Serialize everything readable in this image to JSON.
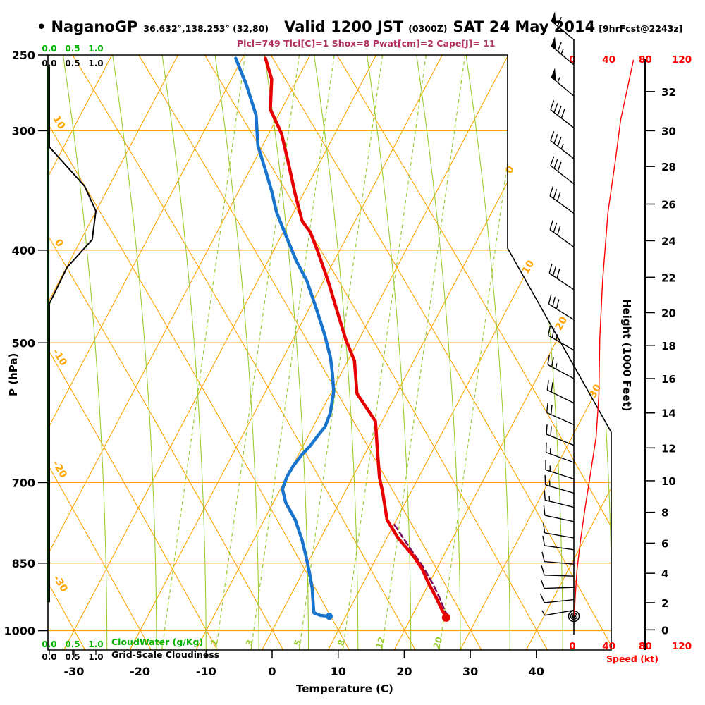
{
  "header": {
    "bullet": "•",
    "station": "NaganoGP",
    "coords": "36.632°,138.253° (32,80)",
    "valid": "Valid 1200 JST",
    "zulu": "(0300Z)",
    "date": "SAT 24 May 2014",
    "forecast": "[9hrFcst@2243z]",
    "stats": "Plcl=749 Tlcl[C]=1 Shox=8 Pwat[cm]=2 Cape[J]= 11"
  },
  "scales": {
    "cloudwater": {
      "ticks": [
        "0.0",
        "0.5",
        "1.0"
      ],
      "label": "CloudWater (g/Kg)"
    },
    "cloudiness": {
      "ticks": [
        "0.0",
        "0.5",
        "1.0"
      ],
      "label": "Grid-Scale Cloudiness"
    }
  },
  "axes": {
    "pressure": {
      "label": "P (hPa)",
      "ticks": [
        250,
        300,
        400,
        500,
        700,
        850,
        1000
      ]
    },
    "temperature": {
      "label": "Temperature (C)",
      "ticks": [
        -30,
        -20,
        -10,
        0,
        10,
        20,
        30,
        40
      ]
    },
    "height": {
      "label": "Height (1000 Feet)",
      "ticks": [
        [
          32,
          273
        ],
        [
          30,
          300
        ],
        [
          28,
          327
        ],
        [
          26,
          358
        ],
        [
          24,
          391
        ],
        [
          22,
          427
        ],
        [
          20,
          465
        ],
        [
          18,
          503
        ],
        [
          16,
          545
        ],
        [
          14,
          592
        ],
        [
          12,
          644
        ],
        [
          10,
          697
        ],
        [
          8,
          752
        ],
        [
          6,
          810
        ],
        [
          4,
          871
        ],
        [
          2,
          935
        ],
        [
          0,
          998
        ]
      ]
    },
    "speed": {
      "label": "Speed (kt)",
      "ticks": [
        0,
        40,
        80,
        120
      ]
    }
  },
  "chart_data": {
    "type": "line",
    "subtype": "skew-T log-p thermodynamic sounding",
    "title": "NaganoGP Valid 1200 JST (0300Z) SAT 24 May 2014 [9hrFcst@2243z]",
    "pressure_range_hPa": [
      250,
      1000
    ],
    "temperature_range_C": [
      -30,
      40
    ],
    "grid": {
      "isobars_hPa": [
        300,
        400,
        500,
        700,
        850,
        1000
      ],
      "isotherms_C": [
        -80,
        -70,
        -60,
        -50,
        -40,
        -30,
        -20,
        -10,
        0,
        10,
        20,
        30,
        40
      ],
      "dry_adiabats_C": [
        -40,
        -30,
        -20,
        -10,
        0,
        10,
        20,
        30,
        40,
        50,
        60
      ],
      "moist_adiabats_C": [
        -25,
        -17.5,
        -10,
        -2,
        5.5,
        13,
        21,
        28.5,
        36,
        44,
        51.5
      ],
      "mixing_ratio_values_g_kg": [
        1,
        2,
        3,
        5,
        8,
        12,
        20
      ],
      "mixing_ratio_t_at_1000hPa": [
        -16.3,
        -8.1,
        -2.8,
        4.5,
        11.1,
        17.0,
        25.7
      ],
      "isotherm_edge_labels": [
        "0",
        "10",
        "20",
        "30"
      ],
      "dry_adiabat_edge_labels": [
        "10",
        "0",
        "-10",
        "-20",
        "-30"
      ]
    },
    "series": {
      "temperature_C": [
        [
          252,
          -46.5
        ],
        [
          265,
          -43.9
        ],
        [
          285,
          -41.7
        ],
        [
          302,
          -38.1
        ],
        [
          323,
          -34.9
        ],
        [
          351,
          -31.0
        ],
        [
          373,
          -28.0
        ],
        [
          383,
          -25.9
        ],
        [
          400,
          -23.4
        ],
        [
          431,
          -19.3
        ],
        [
          462,
          -15.7
        ],
        [
          496,
          -12.0
        ],
        [
          522,
          -9.0
        ],
        [
          565,
          -6.0
        ],
        [
          604,
          -1.0
        ],
        [
          646,
          1.5
        ],
        [
          692,
          4.1
        ],
        [
          716,
          5.7
        ],
        [
          766,
          8.6
        ],
        [
          799,
          11.6
        ],
        [
          815,
          13.3
        ],
        [
          836,
          15.5
        ],
        [
          862,
          17.8
        ],
        [
          892,
          19.9
        ],
        [
          922,
          22.1
        ],
        [
          946,
          23.7
        ],
        [
          969,
          25.3
        ]
      ],
      "dewpoint_C": [
        [
          252,
          -51.0
        ],
        [
          269,
          -47.2
        ],
        [
          289,
          -43.4
        ],
        [
          311,
          -40.7
        ],
        [
          330,
          -37.6
        ],
        [
          347,
          -35.0
        ],
        [
          365,
          -32.6
        ],
        [
          383,
          -29.8
        ],
        [
          410,
          -25.8
        ],
        [
          431,
          -22.5
        ],
        [
          464,
          -18.5
        ],
        [
          491,
          -15.5
        ],
        [
          519,
          -12.8
        ],
        [
          540,
          -11.2
        ],
        [
          562,
          -9.7
        ],
        [
          592,
          -8.5
        ],
        [
          612,
          -8.2
        ],
        [
          626,
          -8.6
        ],
        [
          640,
          -8.9
        ],
        [
          655,
          -9.5
        ],
        [
          673,
          -9.9
        ],
        [
          690,
          -10.0
        ],
        [
          711,
          -9.7
        ],
        [
          735,
          -8.1
        ],
        [
          766,
          -5.3
        ],
        [
          802,
          -2.8
        ],
        [
          834,
          -0.9
        ],
        [
          867,
          0.9
        ],
        [
          903,
          2.7
        ],
        [
          938,
          4.1
        ],
        [
          958,
          4.9
        ],
        [
          964,
          6.1
        ],
        [
          966,
          7.5
        ]
      ],
      "parcel_C": [
        [
          775,
          10.1
        ],
        [
          823,
          14.6
        ],
        [
          859,
          17.9
        ],
        [
          892,
          20.5
        ],
        [
          925,
          22.8
        ],
        [
          954,
          24.6
        ],
        [
          963,
          25.3
        ]
      ],
      "wind_speed_kt": [
        [
          253,
          67
        ],
        [
          292,
          53
        ],
        [
          323,
          47
        ],
        [
          365,
          39
        ],
        [
          432,
          33
        ],
        [
          495,
          30
        ],
        [
          567,
          29
        ],
        [
          627,
          26
        ],
        [
          683,
          20
        ],
        [
          743,
          14
        ],
        [
          802,
          9
        ],
        [
          864,
          5
        ],
        [
          924,
          3
        ],
        [
          965,
          2
        ]
      ],
      "wind_barbs": [
        [
          241,
          140,
          1,
          1,
          0
        ],
        [
          256,
          140,
          1,
          1,
          1
        ],
        [
          276,
          140,
          1,
          0,
          1
        ],
        [
          298,
          142,
          0,
          4,
          0
        ],
        [
          321,
          142,
          0,
          3,
          1
        ],
        [
          341,
          142,
          0,
          3,
          0
        ],
        [
          366,
          144,
          0,
          3,
          0
        ],
        [
          397,
          144,
          0,
          3,
          0
        ],
        [
          440,
          146,
          0,
          3,
          0
        ],
        [
          473,
          148,
          0,
          3,
          0
        ],
        [
          509,
          150,
          0,
          2,
          1
        ],
        [
          545,
          152,
          0,
          2,
          1
        ],
        [
          578,
          154,
          0,
          2,
          0
        ],
        [
          609,
          156,
          0,
          2,
          0
        ],
        [
          640,
          158,
          0,
          2,
          0
        ],
        [
          667,
          160,
          0,
          1,
          1
        ],
        [
          694,
          162,
          0,
          1,
          1
        ],
        [
          718,
          164,
          0,
          1,
          1
        ],
        [
          743,
          166,
          0,
          1,
          1
        ],
        [
          769,
          168,
          0,
          1,
          0
        ],
        [
          800,
          170,
          0,
          1,
          0
        ],
        [
          823,
          172,
          0,
          1,
          0
        ],
        [
          852,
          175,
          0,
          1,
          0
        ],
        [
          877,
          178,
          0,
          1,
          0
        ],
        [
          901,
          182,
          0,
          1,
          0
        ],
        [
          928,
          186,
          0,
          1,
          0
        ],
        [
          952,
          190,
          0,
          0,
          1
        ]
      ],
      "cloudiness_fraction": [
        [
          257,
          0
        ],
        [
          312,
          0
        ],
        [
          343,
          0.76
        ],
        [
          364,
          1.0
        ],
        [
          390,
          0.92
        ],
        [
          417,
          0.38
        ],
        [
          455,
          0
        ],
        [
          934,
          0
        ]
      ],
      "cloudwater_g_kg": [
        [
          257,
          0
        ],
        [
          934,
          0
        ]
      ]
    },
    "colors": {
      "temperature": "#e60000",
      "dewpoint": "#1874cd",
      "parcel": "#7a1060",
      "grid_orange": "#ffa500",
      "moist_green": "#99cc33",
      "scale_green": "#00b400",
      "wind_barbs": "#000000",
      "speed_profile": "#ff0000",
      "stats_text": "#b03060"
    },
    "legend_position": "none",
    "grid_on": true
  }
}
